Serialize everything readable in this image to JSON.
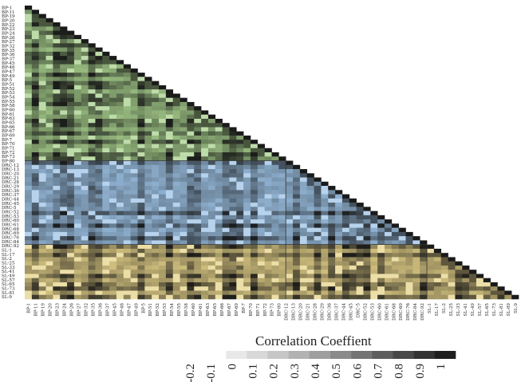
{
  "chart_data": {
    "type": "heatmap",
    "legend_title": "Correlation Coeffient",
    "legend_ticks": [
      "-0.2",
      "-0.1",
      "0",
      "0.1",
      "0.2",
      "0.3",
      "0.4",
      "0.5",
      "0.6",
      "0.7",
      "0.8",
      "0.9",
      "1"
    ],
    "legend_colors": [
      "#ffffff",
      "#e8e8e8",
      "#d8d8d8",
      "#c6c6c6",
      "#b2b2b2",
      "#9e9e9e",
      "#8a8a8a",
      "#747474",
      "#5e5e5e",
      "#484848",
      "#333333",
      "#1e1e1e"
    ],
    "group_colors": {
      "BP": "#a8d08d",
      "DRC": "#9dc3e6",
      "SL": "#e6d38a"
    },
    "legend_placement": "bottom",
    "shape": "lower-triangle",
    "variables": [
      "BP-1",
      "BP-11",
      "BP-19",
      "BP-20",
      "BP-22",
      "BP-23",
      "BP-24",
      "BP-26",
      "BP-27",
      "BP-32",
      "BP-35",
      "BP-36",
      "BP-37",
      "BP-45",
      "BP-46",
      "BP-47",
      "BP-49",
      "BP-5",
      "BP-51",
      "BP-52",
      "BP-53",
      "BP-54",
      "BP-55",
      "BP-58",
      "BP-60",
      "BP-61",
      "BP-63",
      "BP-65",
      "BP-66",
      "BP-67",
      "BP-69",
      "BP-7",
      "BP-70",
      "BP-71",
      "BP-72",
      "BP-73",
      "BP-80",
      "DRC-12",
      "DRC-13",
      "DRC-20",
      "DRC-21",
      "DRC-28",
      "DRC-29",
      "DRC-36",
      "DRC-37",
      "DRC-44",
      "DRC-45",
      "DRC-5",
      "DRC-52",
      "DRC-53",
      "DRC-60",
      "DRC-61",
      "DRC-68",
      "DRC-69",
      "DRC-76",
      "DRC-84",
      "DRC-92",
      "SL-1",
      "SL-17",
      "SL-2",
      "SL-25",
      "SL-33",
      "SL-41",
      "SL-49",
      "SL-57",
      "SL-65",
      "SL-73",
      "SL-81",
      "SL-89",
      "SL-9"
    ],
    "y_labels": [
      "BP-1",
      "BP-11",
      "BP-19",
      "BP-20",
      "BP-22",
      "BP-23",
      "BP-24",
      "BP-26",
      "BP-27",
      "BP-32",
      "BP-35",
      "BP-36",
      "BP-37",
      "BP-45",
      "BP-46",
      "BP-47",
      "BP-49",
      "BP-5",
      "BP-51",
      "BP-52",
      "BP-53",
      "BP-54",
      "BP-55",
      "BP-58",
      "BP-60",
      "BP-61",
      "BP-63",
      "BP-65",
      "BP-66",
      "BP-67",
      "BP-69",
      "BP-7",
      "BP-70",
      "BP-71",
      "BP-72",
      "BP-73",
      "BP-80",
      "DRC-12",
      "DRC-13",
      "DRC-20",
      "DRC-21",
      "DRC-28",
      "DRC-29",
      "DRC-36",
      "DRC-37",
      "DRC-44",
      "DRC-45",
      "DRC-5",
      "DRC-52",
      "DRC-53",
      "DRC-60",
      "DRC-61",
      "DRC-68",
      "DRC-69",
      "DRC-76",
      "DRC-84",
      "DRC-92",
      "SL-1",
      "SL-17",
      "SL-2",
      "SL-25",
      "SL-33",
      "SL-41",
      "SL-49",
      "SL-57",
      "SL-65",
      "SL-73",
      "SL-81",
      "SL-9"
    ],
    "x_labels": [
      "BP-1",
      "BP-11",
      "BP-19",
      "BP-20",
      "BP-23",
      "BP-24",
      "BP-26",
      "BP-27",
      "BP-32",
      "BP-35",
      "BP-36",
      "BP-37",
      "BP-45",
      "BP-46",
      "BP-47",
      "BP-49",
      "BP-5",
      "BP-51",
      "BP-52",
      "BP-53",
      "BP-54",
      "BP-55",
      "BP-58",
      "BP-60",
      "BP-61",
      "BP-63",
      "BP-65",
      "BP-66",
      "BP-67",
      "BP-69",
      "BP-7",
      "BP-70",
      "BP-71",
      "BP-72",
      "BP-73",
      "BP-80",
      "DRC-12",
      "DRC-13",
      "DRC-20",
      "DRC-21",
      "DRC-28",
      "DRC-29",
      "DRC-36",
      "DRC-37",
      "DRC-44",
      "DRC-45",
      "DRC-5",
      "DRC-52",
      "DRC-53",
      "DRC-60",
      "DRC-61",
      "DRC-68",
      "DRC-69",
      "DRC-76",
      "DRC-84",
      "DRC-92",
      "SL-1",
      "SL-17",
      "SL-2",
      "SL-25",
      "SL-33",
      "SL-41",
      "SL-49",
      "SL-57",
      "SL-65",
      "SL-73",
      "SL-81",
      "SL-89",
      "SL-9"
    ]
  }
}
